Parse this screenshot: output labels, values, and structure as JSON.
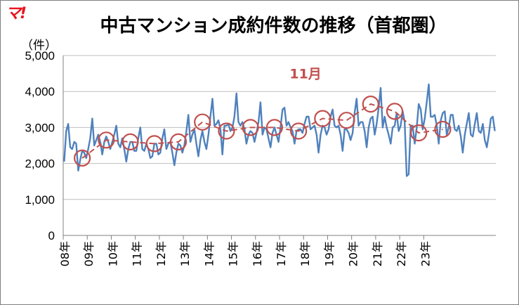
{
  "logo": "マ!",
  "chart_data": {
    "type": "line",
    "title": "中古マンション成約件数の推移（首都圏）",
    "ylabel": "（件）",
    "ylim": [
      0,
      5000
    ],
    "yticks": [
      0,
      1000,
      2000,
      3000,
      4000,
      5000
    ],
    "ytick_labels": [
      "0",
      "1,000",
      "2,000",
      "3,000",
      "4,000",
      "5,000"
    ],
    "xtick_labels": [
      "08年",
      "09年",
      "10年",
      "11年",
      "12年",
      "13年",
      "14年",
      "15年",
      "16年",
      "17年",
      "18年",
      "19年",
      "20年",
      "21年",
      "22年",
      "23年"
    ],
    "grid": true,
    "colors": {
      "monthly": "#4f81bd",
      "november": "#c0504d"
    },
    "series": [
      {
        "values": [
          2050,
          2900,
          3100,
          2450,
          2400,
          2600,
          2550,
          1800,
          2100,
          2350,
          2300,
          2150,
          2400,
          2700,
          3250,
          2500,
          2650,
          2800,
          2600,
          2250,
          2600,
          2750,
          2600,
          2400,
          2600,
          2800,
          3050,
          2550,
          2450,
          2700,
          2400,
          2050,
          2400,
          2600,
          2600,
          2350,
          2350,
          2700,
          3000,
          2400,
          2350,
          2550,
          2400,
          2150,
          2200,
          2550,
          2550,
          2250,
          2300,
          2700,
          2950,
          2400,
          2550,
          2600,
          2300,
          1950,
          2300,
          2550,
          2500,
          2300,
          2500,
          2900,
          3350,
          2600,
          2800,
          2950,
          2550,
          2200,
          2650,
          2900,
          2600,
          2400,
          2800,
          3300,
          3800,
          3050,
          3100,
          3200,
          2950,
          2250,
          3050,
          3050,
          3100,
          2900,
          3000,
          3300,
          3950,
          3150,
          3050,
          3150,
          2950,
          2550,
          2800,
          2900,
          2850,
          2600,
          2850,
          3150,
          3700,
          2800,
          3000,
          2950,
          2700,
          2450,
          2850,
          3000,
          2800,
          2600,
          3000,
          3500,
          3550,
          3050,
          3150,
          3000,
          2900,
          2550,
          2900,
          2950,
          2950,
          2850,
          3100,
          3300,
          3300,
          2950,
          3000,
          3050,
          2800,
          2300,
          2800,
          3050,
          3000,
          2800,
          2950,
          3300,
          3500,
          3050,
          3000,
          3050,
          2800,
          2350,
          2950,
          2950,
          2850,
          2650,
          2850,
          3400,
          3800,
          3050,
          3150,
          3150,
          2900,
          2450,
          3000,
          3250,
          3300,
          2800,
          3100,
          3550,
          4100,
          3000,
          3300,
          3000,
          2800,
          2550,
          3000,
          3050,
          3400,
          2900,
          3050,
          3450,
          3150,
          1650,
          1700,
          3050,
          3050,
          2550,
          3000,
          3650,
          3500,
          2950,
          3250,
          3700,
          4200,
          3300,
          3300,
          3350,
          3050,
          2550,
          3200,
          3400,
          3450,
          2800,
          3000,
          3350,
          3350,
          2950,
          2900,
          3050,
          2750,
          2300,
          2800,
          3100,
          3400,
          2800,
          2750,
          3100,
          3400,
          2900,
          2850,
          3100,
          2650,
          2450,
          2800,
          3250,
          3300,
          2900
        ]
      },
      {
        "points": [
          [
            9,
            2150
          ],
          [
            21,
            2650
          ],
          [
            33,
            2600
          ],
          [
            45,
            2550
          ],
          [
            57,
            2600
          ],
          [
            69,
            3150
          ],
          [
            81,
            2900
          ],
          [
            93,
            3000
          ],
          [
            105,
            3000
          ],
          [
            117,
            2900
          ],
          [
            129,
            3250
          ],
          [
            141,
            3200
          ],
          [
            153,
            3650
          ],
          [
            165,
            3450
          ],
          [
            177,
            2850
          ],
          [
            189,
            2950
          ]
        ]
      }
    ],
    "annotations": [
      {
        "text": "11月",
        "at_series_point": 9
      }
    ]
  }
}
